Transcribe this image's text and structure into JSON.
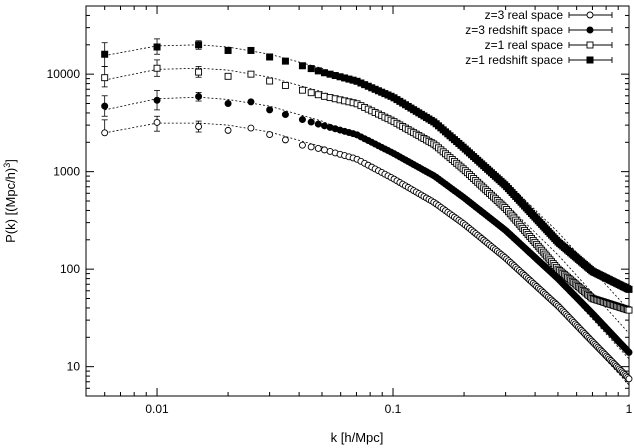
{
  "chart_data": {
    "type": "scatter",
    "xlabel": "k [h/Mpc]",
    "ylabel_main": "P(k) [(Mpc/h)",
    "ylabel_exp": "3",
    "ylabel_close": "]",
    "x_scale": "log",
    "y_scale": "log",
    "xlim": [
      0.005,
      1
    ],
    "ylim": [
      5,
      50000
    ],
    "x_ticks": [
      {
        "value": 0.01,
        "label": "0.01"
      },
      {
        "value": 0.1,
        "label": "0.1"
      },
      {
        "value": 1,
        "label": "1"
      }
    ],
    "y_ticks": [
      {
        "value": 10,
        "label": "10"
      },
      {
        "value": 100,
        "label": "100"
      },
      {
        "value": 1000,
        "label": "1000"
      },
      {
        "value": 10000,
        "label": "10000"
      }
    ],
    "grid": false,
    "legend_position": "top-right",
    "series": [
      {
        "name": "z=3 real space",
        "marker": "open-circle",
        "points": [
          [
            0.006,
            2500
          ],
          [
            0.01,
            3200
          ],
          [
            0.015,
            2900
          ],
          [
            0.02,
            2650
          ],
          [
            0.025,
            2800
          ],
          [
            0.03,
            2400
          ],
          [
            0.04,
            1900
          ],
          [
            0.05,
            1700
          ],
          [
            0.07,
            1350
          ],
          [
            0.1,
            850
          ],
          [
            0.15,
            480
          ],
          [
            0.2,
            290
          ],
          [
            0.3,
            130
          ],
          [
            0.5,
            42
          ],
          [
            0.7,
            18
          ],
          [
            1,
            7.5
          ]
        ],
        "errors": [
          [
            0.006,
            2500,
            3400
          ],
          [
            0.01,
            2600,
            3700
          ],
          [
            0.015,
            2550,
            3300
          ]
        ],
        "model": [
          [
            0.006,
            2500
          ],
          [
            0.01,
            3150
          ],
          [
            0.015,
            3150
          ],
          [
            0.02,
            3000
          ],
          [
            0.03,
            2550
          ],
          [
            0.05,
            1800
          ],
          [
            0.1,
            880
          ],
          [
            0.2,
            310
          ],
          [
            0.3,
            140
          ],
          [
            0.5,
            40
          ],
          [
            1,
            6.5
          ]
        ]
      },
      {
        "name": "z=3 redshift space",
        "marker": "filled-circle",
        "points": [
          [
            0.006,
            4700
          ],
          [
            0.01,
            5400
          ],
          [
            0.015,
            5900
          ],
          [
            0.02,
            5000
          ],
          [
            0.025,
            5200
          ],
          [
            0.03,
            4300
          ],
          [
            0.04,
            3500
          ],
          [
            0.05,
            3000
          ],
          [
            0.07,
            2400
          ],
          [
            0.1,
            1550
          ],
          [
            0.15,
            900
          ],
          [
            0.2,
            540
          ],
          [
            0.3,
            250
          ],
          [
            0.5,
            80
          ],
          [
            0.7,
            35
          ],
          [
            1,
            14
          ]
        ],
        "errors": [
          [
            0.006,
            3700,
            6000
          ],
          [
            0.01,
            4300,
            6800
          ],
          [
            0.015,
            5300,
            6500
          ]
        ],
        "model": [
          [
            0.006,
            4300
          ],
          [
            0.01,
            5600
          ],
          [
            0.015,
            5800
          ],
          [
            0.02,
            5500
          ],
          [
            0.03,
            4700
          ],
          [
            0.05,
            3300
          ],
          [
            0.1,
            1600
          ],
          [
            0.2,
            560
          ],
          [
            0.3,
            240
          ],
          [
            0.5,
            75
          ],
          [
            1,
            12
          ]
        ]
      },
      {
        "name": "z=1 real space",
        "marker": "open-square",
        "points": [
          [
            0.006,
            9200
          ],
          [
            0.01,
            11500
          ],
          [
            0.015,
            10500
          ],
          [
            0.02,
            9500
          ],
          [
            0.025,
            10000
          ],
          [
            0.03,
            8500
          ],
          [
            0.04,
            7000
          ],
          [
            0.05,
            6000
          ],
          [
            0.07,
            5000
          ],
          [
            0.1,
            3300
          ],
          [
            0.15,
            1900
          ],
          [
            0.2,
            1050
          ],
          [
            0.3,
            420
          ],
          [
            0.5,
            100
          ],
          [
            0.7,
            50
          ],
          [
            1,
            38
          ]
        ],
        "errors": [
          [
            0.006,
            7400,
            12000
          ],
          [
            0.01,
            9500,
            14000
          ],
          [
            0.015,
            9300,
            12000
          ]
        ],
        "model": [
          [
            0.006,
            8700
          ],
          [
            0.01,
            11200
          ],
          [
            0.015,
            11500
          ],
          [
            0.02,
            11000
          ],
          [
            0.03,
            9300
          ],
          [
            0.05,
            6600
          ],
          [
            0.1,
            3200
          ],
          [
            0.2,
            1100
          ],
          [
            0.3,
            470
          ],
          [
            0.5,
            140
          ],
          [
            1,
            22
          ]
        ]
      },
      {
        "name": "z=1 redshift space",
        "marker": "filled-square",
        "points": [
          [
            0.006,
            16000
          ],
          [
            0.01,
            19000
          ],
          [
            0.015,
            20000
          ],
          [
            0.02,
            17500
          ],
          [
            0.025,
            17500
          ],
          [
            0.03,
            15000
          ],
          [
            0.04,
            12500
          ],
          [
            0.05,
            10500
          ],
          [
            0.07,
            8500
          ],
          [
            0.1,
            5800
          ],
          [
            0.15,
            3200
          ],
          [
            0.2,
            1750
          ],
          [
            0.3,
            720
          ],
          [
            0.5,
            190
          ],
          [
            0.7,
            95
          ],
          [
            1,
            62
          ]
        ],
        "errors": [
          [
            0.006,
            12000,
            21000
          ],
          [
            0.01,
            16000,
            23000
          ],
          [
            0.015,
            18000,
            22000
          ]
        ],
        "model": [
          [
            0.006,
            15500
          ],
          [
            0.01,
            19500
          ],
          [
            0.015,
            20000
          ],
          [
            0.02,
            19000
          ],
          [
            0.03,
            16000
          ],
          [
            0.05,
            11500
          ],
          [
            0.1,
            5500
          ],
          [
            0.2,
            1900
          ],
          [
            0.3,
            800
          ],
          [
            0.5,
            240
          ],
          [
            1,
            38
          ]
        ]
      }
    ]
  }
}
